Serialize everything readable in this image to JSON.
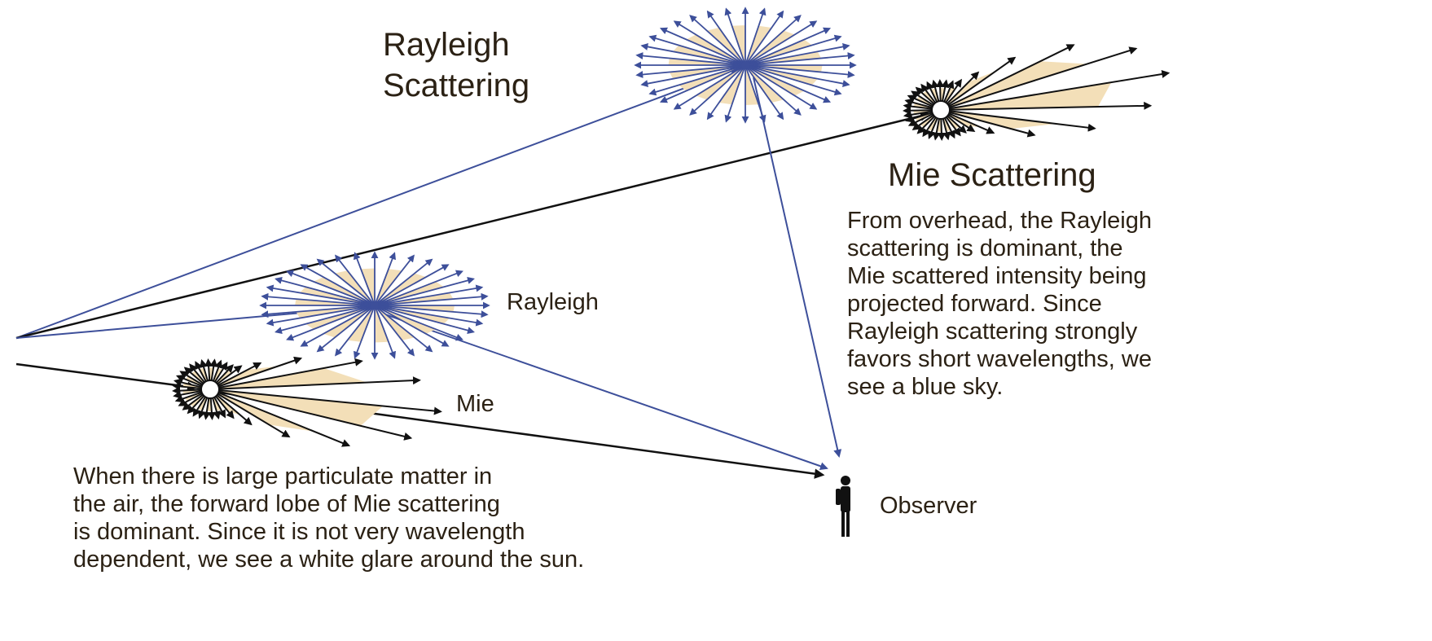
{
  "labels": {
    "rayleigh_scattering": [
      "Rayleigh",
      "Scattering"
    ],
    "mie_scattering": "Mie Scattering",
    "rayleigh": "Rayleigh",
    "mie": "Mie",
    "observer": "Observer"
  },
  "notes": {
    "overhead": [
      "From overhead, the Rayleigh",
      "scattering is dominant, the",
      "Mie scattered intensity being",
      "projected forward. Since",
      "Rayleigh scattering strongly",
      "favors short wavelengths, we",
      "see a blue sky."
    ],
    "particulate": [
      "When there is large particulate matter in",
      "the air, the forward lobe of Mie scattering",
      "is dominant. Since it is not very wavelength",
      "dependent, we see a white glare around the sun."
    ]
  }
}
